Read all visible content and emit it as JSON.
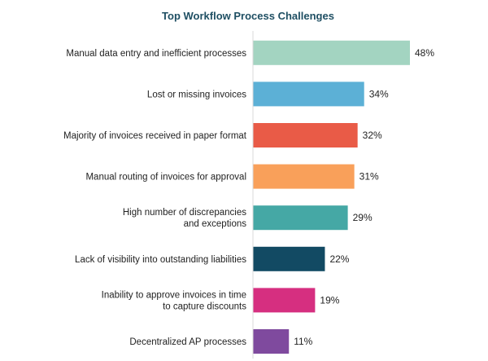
{
  "chart_data": {
    "type": "bar",
    "orientation": "horizontal",
    "title": "Top Workflow Process Challenges",
    "xlabel": "",
    "ylabel": "",
    "xlim": [
      0,
      48
    ],
    "grid": false,
    "legend": "none",
    "categories": [
      "Manual data entry and inefficient processes",
      "Lost or missing invoices",
      "Majority of invoices received in paper format",
      "Manual routing of invoices for approval",
      "High number of discrepancies and exceptions",
      "Lack of visibility into outstanding liabilities",
      "Inability to approve invoices in time to capture discounts",
      "Decentralized AP processes"
    ],
    "category_lines": [
      [
        "Manual data entry and inefficient processes"
      ],
      [
        "Lost or missing invoices"
      ],
      [
        "Majority of invoices received in paper format"
      ],
      [
        "Manual routing of invoices for approval"
      ],
      [
        "High number of discrepancies",
        "and exceptions"
      ],
      [
        "Lack of visibility into outstanding liabilities"
      ],
      [
        "Inability to approve invoices in time",
        "to capture discounts"
      ],
      [
        "Decentralized AP processes"
      ]
    ],
    "values": [
      48,
      34,
      32,
      31,
      29,
      22,
      19,
      11
    ],
    "value_labels": [
      "48%",
      "34%",
      "32%",
      "31%",
      "29%",
      "22%",
      "19%",
      "11%"
    ],
    "colors": [
      "#a3d4c1",
      "#5cb0d6",
      "#e95b47",
      "#f9a05a",
      "#45a8a5",
      "#124a63",
      "#d62f80",
      "#7f4a9e"
    ],
    "axis_color": "#d9d9d9"
  }
}
